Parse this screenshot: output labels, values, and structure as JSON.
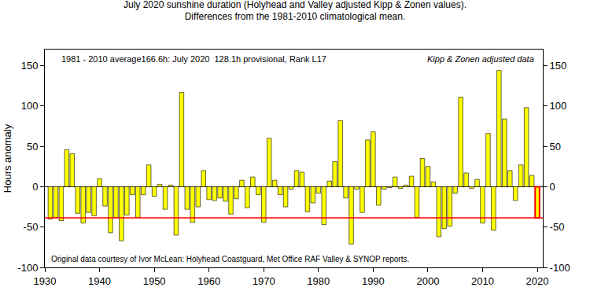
{
  "chart_data": {
    "type": "bar",
    "title": "July 2020 sunshine duration (Holyhead and Valley adjusted Kipp & Zonen values).",
    "subtitle": "Differences from the 1981-2010 climatological mean.",
    "y_label": "Hours anomaly",
    "annotations": [
      "1981 - 2010 average166.6h: July 2020  128.1h provisional, Rank L17",
      "Kipp & Zonen adjusted data",
      "Original data courtesy of Ivor McLean: Holyhead Coastguard, Met Office RAF Valley & SYNOP reports."
    ],
    "x": [
      1931,
      1932,
      1933,
      1934,
      1935,
      1936,
      1937,
      1938,
      1939,
      1940,
      1941,
      1942,
      1943,
      1944,
      1945,
      1946,
      1947,
      1948,
      1949,
      1950,
      1951,
      1952,
      1953,
      1954,
      1955,
      1956,
      1957,
      1958,
      1959,
      1960,
      1961,
      1962,
      1963,
      1964,
      1965,
      1966,
      1967,
      1968,
      1969,
      1970,
      1971,
      1972,
      1973,
      1974,
      1975,
      1976,
      1977,
      1978,
      1979,
      1980,
      1981,
      1982,
      1983,
      1984,
      1985,
      1986,
      1987,
      1988,
      1989,
      1990,
      1991,
      1992,
      1993,
      1994,
      1995,
      1996,
      1997,
      1998,
      1999,
      2000,
      2001,
      2002,
      2003,
      2004,
      2005,
      2006,
      2007,
      2008,
      2009,
      2010,
      2011,
      2012,
      2013,
      2014,
      2015,
      2016,
      2017,
      2018,
      2019,
      2020
    ],
    "values": [
      -40,
      -38,
      -42,
      46,
      41,
      -33,
      -45,
      -32,
      -36,
      10,
      -24,
      -57,
      -38,
      -67,
      -35,
      -10,
      -38,
      -10,
      27,
      -12,
      3,
      -28,
      2,
      -60,
      117,
      -28,
      -44,
      -25,
      20,
      -16,
      -17,
      -14,
      -18,
      -34,
      -15,
      8,
      -26,
      12,
      -10,
      -44,
      60,
      8,
      -10,
      -25,
      -3,
      20,
      18,
      -31,
      -20,
      -8,
      -47,
      7,
      31,
      82,
      -14,
      -71,
      -3,
      -32,
      58,
      68,
      -23,
      -3,
      -1,
      12,
      -2,
      2,
      13,
      -38,
      35,
      25,
      6,
      -62,
      -52,
      -49,
      -8,
      111,
      17,
      -2,
      9,
      -45,
      66,
      -54,
      144,
      84,
      20,
      -17,
      27,
      98,
      14,
      -38.5
    ],
    "color": "#ffff00",
    "highlight": {
      "x": 2020,
      "color": "#ff0000"
    },
    "xlim": [
      1930,
      2021
    ],
    "xticks": [
      1930,
      1940,
      1950,
      1960,
      1970,
      1980,
      1990,
      2000,
      2010,
      2020
    ],
    "ylim": [
      -100,
      170
    ],
    "yticks": [
      -100,
      -50,
      0,
      50,
      100,
      150
    ],
    "y2lim": [
      -100,
      170
    ],
    "y2ticks": [
      -100,
      -50,
      0,
      50,
      100,
      150
    ],
    "grid": false
  }
}
